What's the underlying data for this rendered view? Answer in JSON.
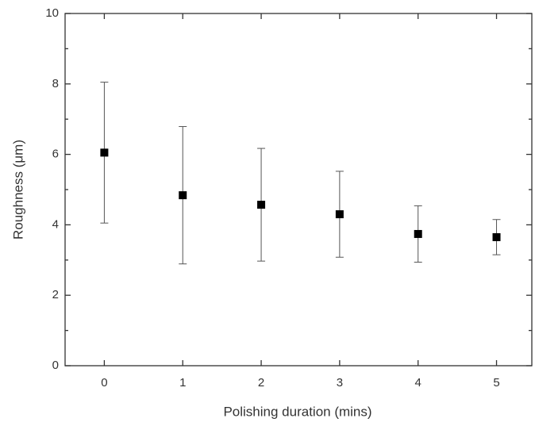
{
  "chart_data": {
    "type": "scatter",
    "x_label": "Polishing duration (mins)",
    "y_label": "Roughness (μm)",
    "x": [
      0,
      1,
      2,
      3,
      4,
      5
    ],
    "series": [
      {
        "color": "#000000",
        "values": [
          6.05,
          4.84,
          4.57,
          4.3,
          3.74,
          3.65
        ],
        "errors": [
          2.0,
          1.95,
          1.6,
          1.22,
          0.8,
          0.5
        ]
      }
    ],
    "xlim": [
      -0.5,
      5.45
    ],
    "ylim": [
      0,
      10
    ],
    "xticks": [
      0,
      1,
      2,
      3,
      4,
      5
    ],
    "yticks": [
      0,
      2,
      4,
      6,
      8,
      10
    ],
    "grid": false
  }
}
